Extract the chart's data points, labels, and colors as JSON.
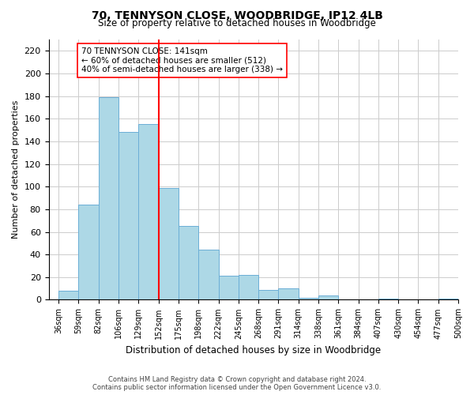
{
  "title": "70, TENNYSON CLOSE, WOODBRIDGE, IP12 4LB",
  "subtitle": "Size of property relative to detached houses in Woodbridge",
  "xlabel": "Distribution of detached houses by size in Woodbridge",
  "ylabel": "Number of detached properties",
  "bin_labels": [
    "36sqm",
    "59sqm",
    "82sqm",
    "106sqm",
    "129sqm",
    "152sqm",
    "175sqm",
    "198sqm",
    "222sqm",
    "245sqm",
    "268sqm",
    "291sqm",
    "314sqm",
    "338sqm",
    "361sqm",
    "384sqm",
    "407sqm",
    "430sqm",
    "454sqm",
    "477sqm",
    "500sqm"
  ],
  "bar_values": [
    8,
    84,
    179,
    148,
    155,
    99,
    65,
    44,
    21,
    22,
    9,
    10,
    2,
    4,
    0,
    0,
    1,
    0,
    0,
    1
  ],
  "bar_color": "#add8e6",
  "bar_edge_color": "#6baed6",
  "vline_x": 5,
  "vline_color": "red",
  "ylim": [
    0,
    230
  ],
  "yticks": [
    0,
    20,
    40,
    60,
    80,
    100,
    120,
    140,
    160,
    180,
    200,
    220
  ],
  "annotation_title": "70 TENNYSON CLOSE: 141sqm",
  "annotation_line1": "← 60% of detached houses are smaller (512)",
  "annotation_line2": "40% of semi-detached houses are larger (338) →",
  "footer_line1": "Contains HM Land Registry data © Crown copyright and database right 2024.",
  "footer_line2": "Contains public sector information licensed under the Open Government Licence v3.0.",
  "bg_color": "#ffffff",
  "grid_color": "#cccccc"
}
